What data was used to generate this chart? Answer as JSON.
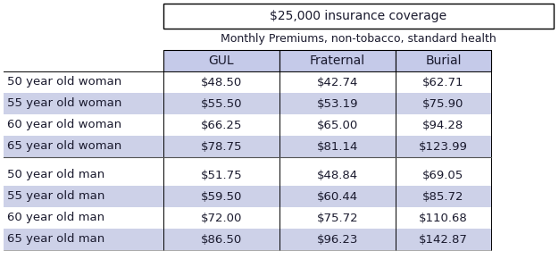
{
  "title1": "$25,000 insurance coverage",
  "title2": "Monthly Premiums, non-tobacco, standard health",
  "col_headers": [
    "GUL",
    "Fraternal",
    "Burial"
  ],
  "row_labels": [
    "50 year old woman",
    "55 year old woman",
    "60 year old woman",
    "65 year old woman",
    "50 year old man",
    "55 year old man",
    "60 year old man",
    "65 year old man"
  ],
  "data": [
    [
      "$48.50",
      "$42.74",
      "$62.71"
    ],
    [
      "$55.50",
      "$53.19",
      "$75.90"
    ],
    [
      "$66.25",
      "$65.00",
      "$94.28"
    ],
    [
      "$78.75",
      "$81.14",
      "$123.99"
    ],
    [
      "$51.75",
      "$48.84",
      "$69.05"
    ],
    [
      "$59.50",
      "$60.44",
      "$85.72"
    ],
    [
      "$72.00",
      "$75.72",
      "$110.68"
    ],
    [
      "$86.50",
      "$96.23",
      "$142.87"
    ]
  ],
  "header_bg": "#c5cae9",
  "row_alt_bg": "#cdd1e8",
  "row_white_bg": "#ffffff",
  "text_color": "#1a1a2e",
  "font_size": 9.5,
  "header_font_size": 10
}
